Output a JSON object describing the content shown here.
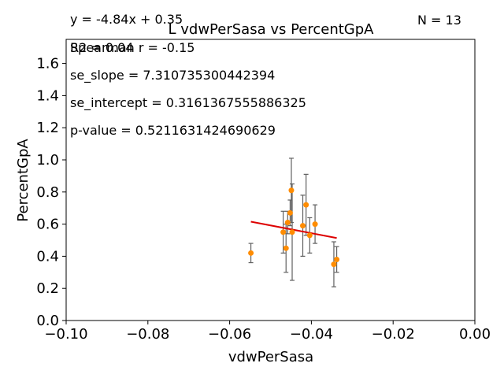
{
  "chart_data": {
    "type": "scatter",
    "title": "L vdwPerSasa vs PercentGpA",
    "xlabel": "vdwPerSasa",
    "ylabel": "PercentGpA",
    "xlim": [
      -0.1,
      0.0
    ],
    "ylim": [
      0.0,
      1.75
    ],
    "xticks": [
      -0.1,
      -0.08,
      -0.06,
      -0.04,
      -0.02,
      0.0
    ],
    "xtick_labels": [
      "−0.10",
      "−0.08",
      "−0.06",
      "−0.04",
      "−0.02",
      "0.00"
    ],
    "yticks": [
      0.0,
      0.2,
      0.4,
      0.6,
      0.8,
      1.0,
      1.2,
      1.4,
      1.6
    ],
    "ytick_labels": [
      "0.0",
      "0.2",
      "0.4",
      "0.6",
      "0.8",
      "1.0",
      "1.2",
      "1.4",
      "1.6"
    ],
    "grid": false,
    "point_color": "#ff8c00",
    "errorbar_color": "#606060",
    "fit_color": "#dd0000",
    "points": [
      {
        "x": -0.0548,
        "y": 0.42,
        "err": 0.06
      },
      {
        "x": -0.0469,
        "y": 0.55,
        "err": 0.13
      },
      {
        "x": -0.0462,
        "y": 0.45,
        "err": 0.15
      },
      {
        "x": -0.0458,
        "y": 0.61,
        "err": 0.07
      },
      {
        "x": -0.0452,
        "y": 0.67,
        "err": 0.08
      },
      {
        "x": -0.0449,
        "y": 0.81,
        "err": 0.2
      },
      {
        "x": -0.0447,
        "y": 0.55,
        "err": 0.3
      },
      {
        "x": -0.0421,
        "y": 0.59,
        "err": 0.19
      },
      {
        "x": -0.0413,
        "y": 0.72,
        "err": 0.19
      },
      {
        "x": -0.0404,
        "y": 0.53,
        "err": 0.11
      },
      {
        "x": -0.0391,
        "y": 0.6,
        "err": 0.12
      },
      {
        "x": -0.0345,
        "y": 0.35,
        "err": 0.14
      },
      {
        "x": -0.0338,
        "y": 0.38,
        "err": 0.08
      }
    ],
    "fit": {
      "x0": -0.0548,
      "x1": -0.0338,
      "slope": -4.84,
      "intercept": 0.35
    },
    "annotations": {
      "equation": "y = -4.84x + 0.35",
      "r2": "R2 = 0.04",
      "spearman": "Spearman r = -0.15",
      "n": "N = 13",
      "se_slope": "se_slope = 7.310735300442394",
      "se_intercept": "se_intercept = 0.3161367555886325",
      "p_value": "p-value = 0.5211631424690629"
    }
  }
}
